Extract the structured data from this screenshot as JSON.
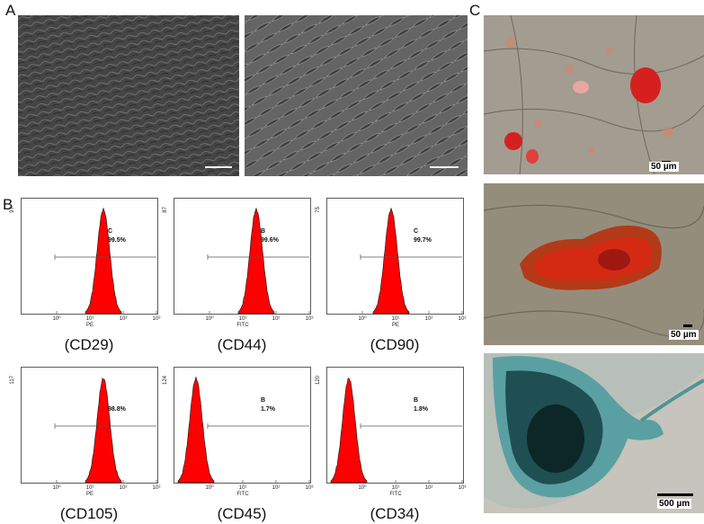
{
  "panels": {
    "a": {
      "letter": "A"
    },
    "b": {
      "letter": "B"
    },
    "c": {
      "letter": "C"
    }
  },
  "scale_bars": {
    "c1": "50 µm",
    "c2": "50 µm",
    "c3": "500 µm"
  },
  "histograms": [
    {
      "label": "(CD29)",
      "ymax": "97",
      "gate": "C",
      "percent": "99.5%",
      "xaxis": "PE",
      "decades": [
        "10⁰",
        "10¹",
        "10²",
        "10³"
      ]
    },
    {
      "label": "(CD44)",
      "ymax": "87",
      "gate": "B",
      "percent": "99.6%",
      "xaxis": "FITC",
      "decades": [
        "10⁰",
        "10¹",
        "10²",
        "10³"
      ]
    },
    {
      "label": "(CD90)",
      "ymax": "75",
      "gate": "C",
      "percent": "99.7%",
      "xaxis": "PE",
      "decades": [
        "10⁰",
        "10¹",
        "10²",
        "10³"
      ]
    },
    {
      "label": "(CD105)",
      "ymax": "117",
      "gate": "",
      "percent": "98.8%",
      "xaxis": "PE",
      "decades": [
        "10⁰",
        "10¹",
        "10²",
        "10³"
      ]
    },
    {
      "label": "(CD45)",
      "ymax": "124",
      "gate": "B",
      "percent": "1.7%",
      "xaxis": "FITC",
      "decades": [
        "10⁰",
        "10¹",
        "10²",
        "10³"
      ]
    },
    {
      "label": "(CD34)",
      "ymax": "120",
      "gate": "B",
      "percent": "1.8%",
      "xaxis": "FITC",
      "decades": [
        "10⁰",
        "10¹",
        "10²",
        "10³"
      ]
    }
  ],
  "colors": {
    "histogram_fill": "#ff0000",
    "stain_red": "#d62020",
    "stain_blue": "#2a6e73"
  }
}
